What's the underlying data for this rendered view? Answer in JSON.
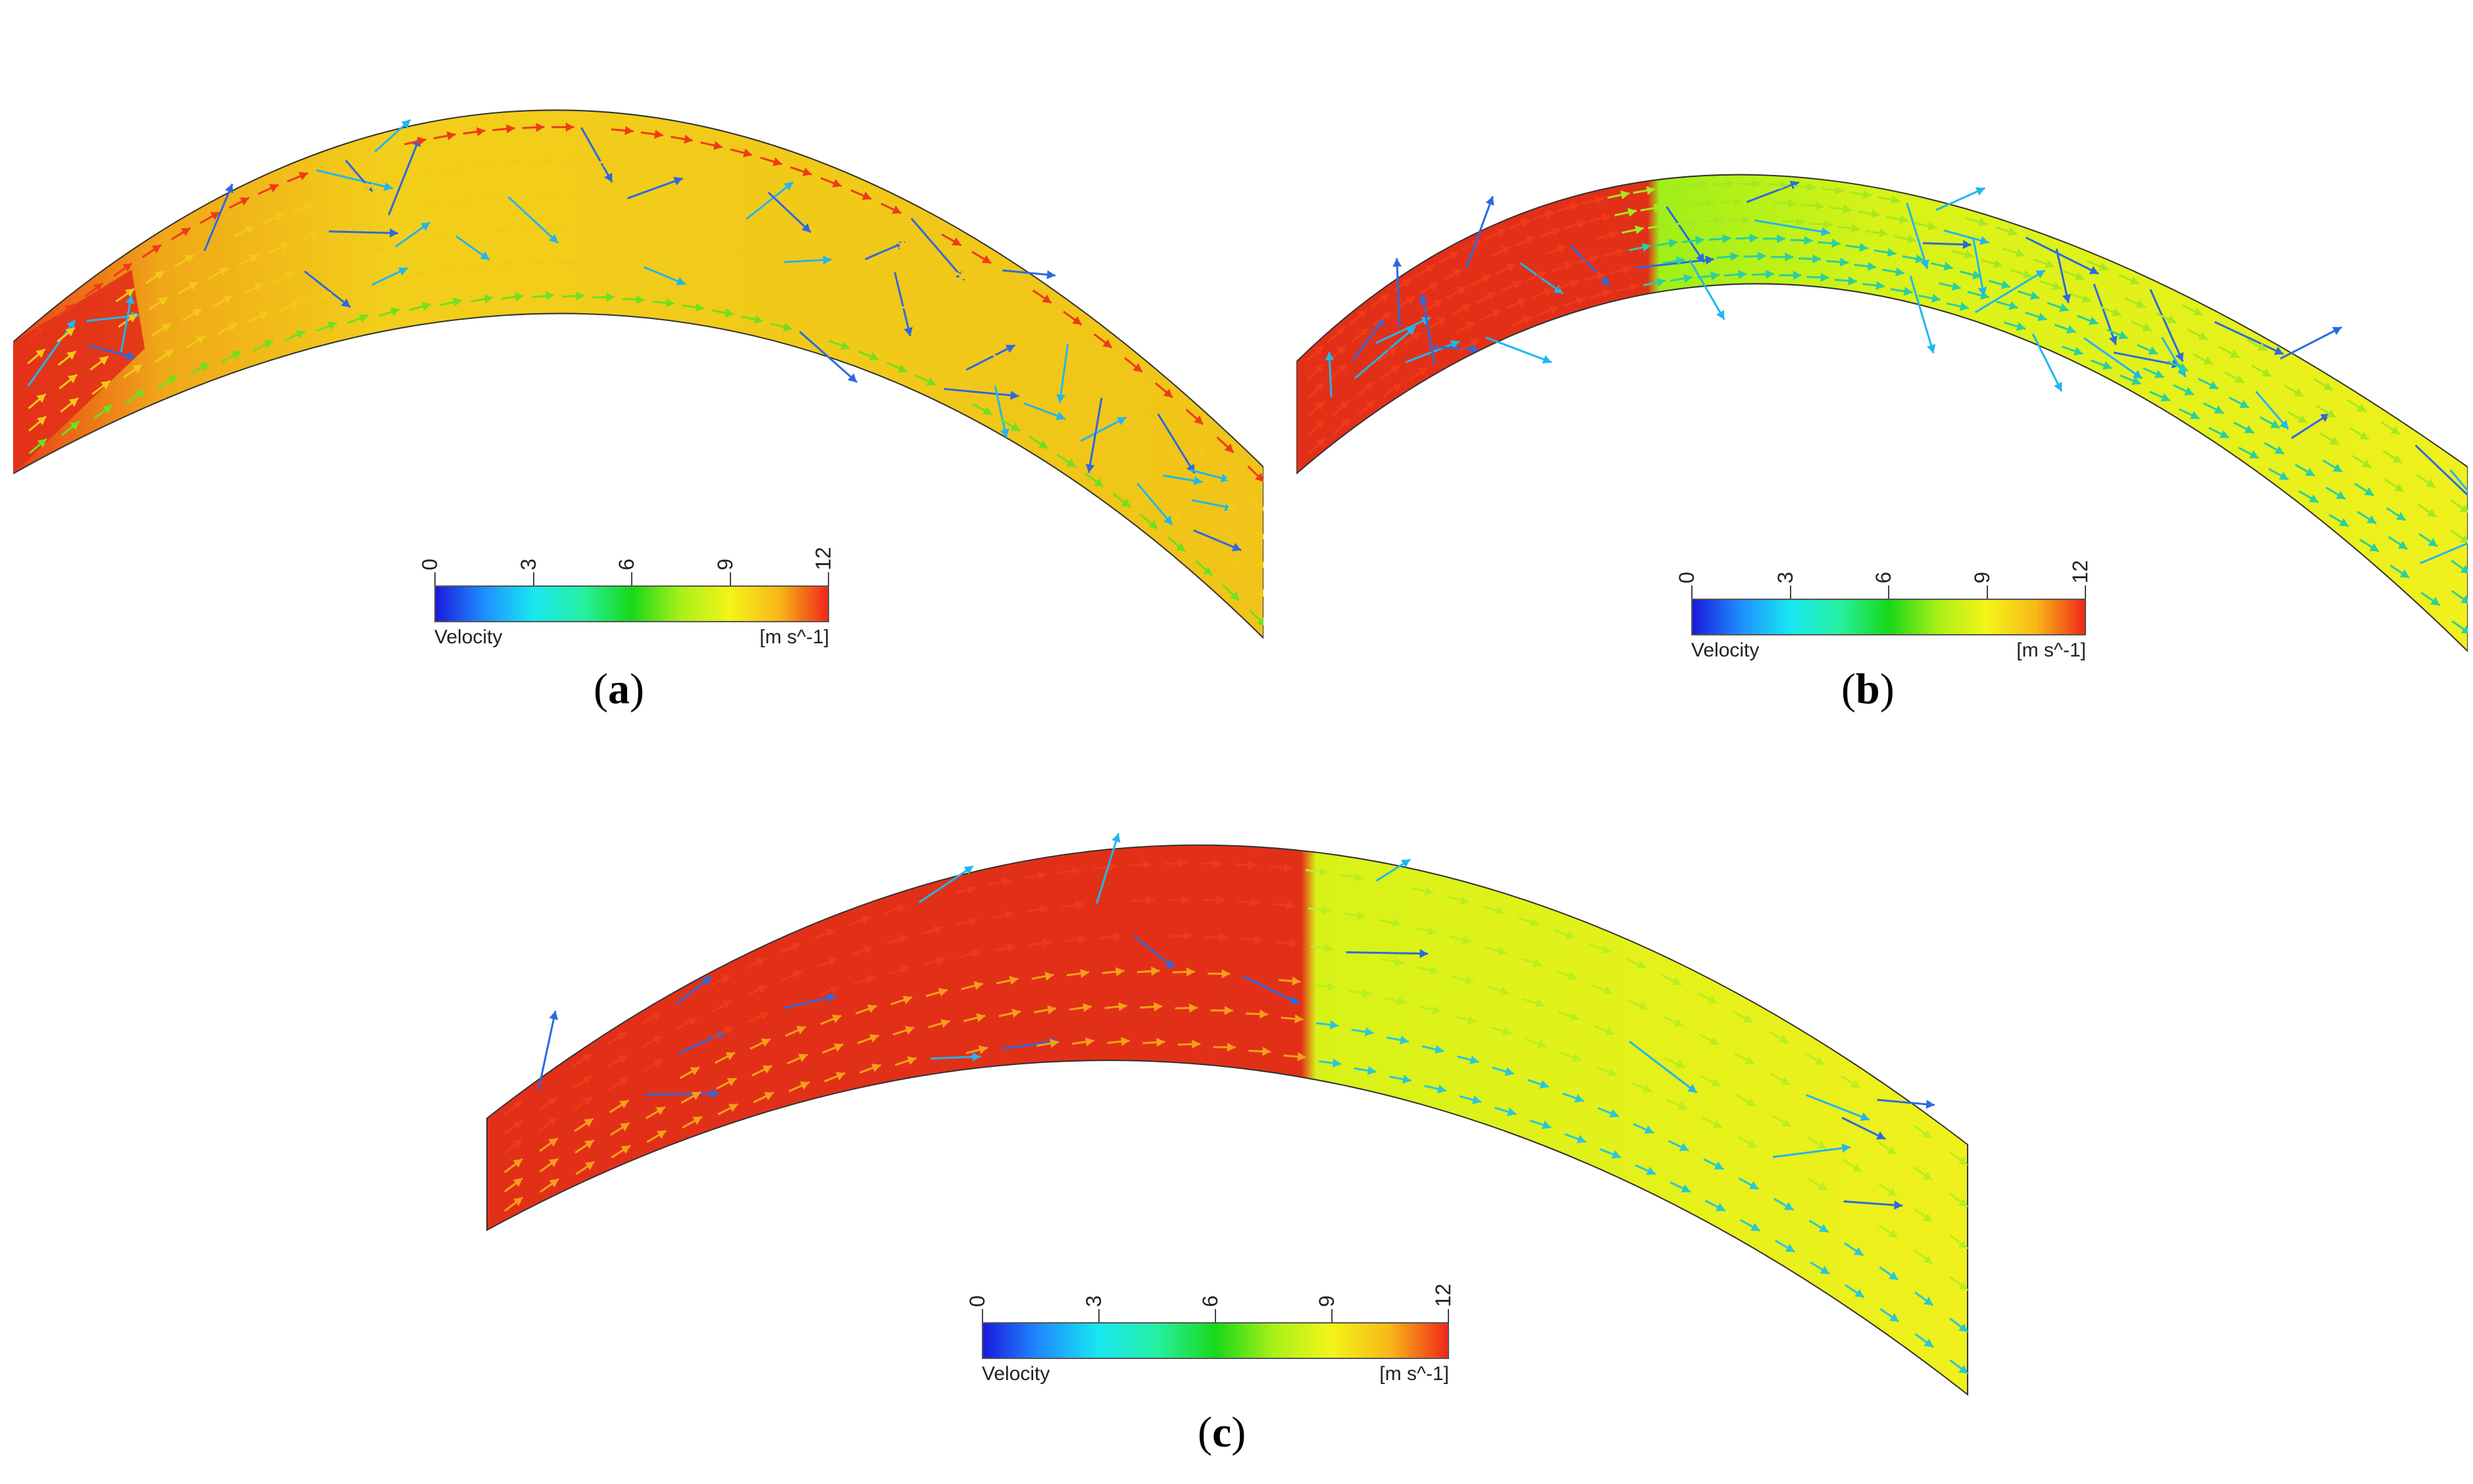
{
  "legend": {
    "quantity": "Velocity",
    "unit": "[m s^-1]",
    "ticks": [
      "0",
      "3",
      "6",
      "9",
      "12"
    ],
    "stops": [
      "#1a1adc",
      "#1f8fff",
      "#18e8f0",
      "#27f0a2",
      "#18d818",
      "#a8f018",
      "#f4f418",
      "#f8b818",
      "#f02818"
    ]
  },
  "panels": [
    {
      "id": "a",
      "caption": "a"
    },
    {
      "id": "b",
      "caption": "b"
    },
    {
      "id": "c",
      "caption": "c"
    }
  ]
}
